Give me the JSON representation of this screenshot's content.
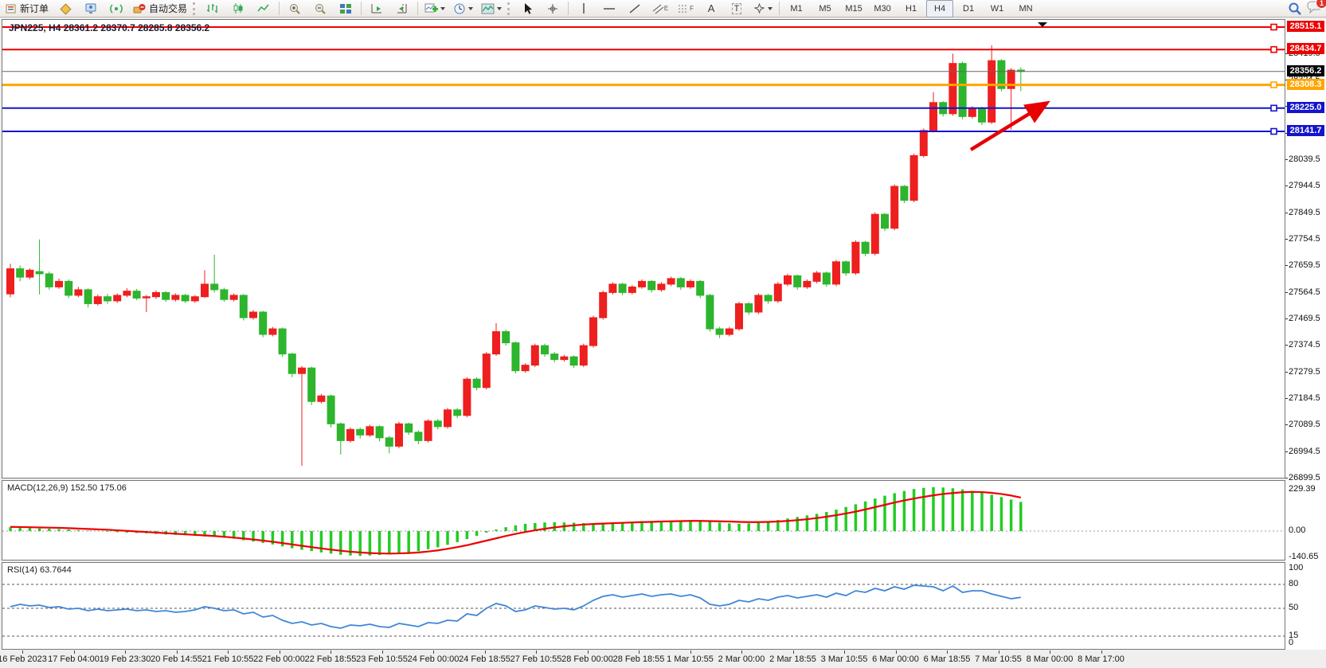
{
  "toolbar": {
    "new_order_label": "新订单",
    "auto_trading_label": "自动交易",
    "tools": {
      "channel_sub": "E",
      "fibo_sub": "F",
      "text_label": "A",
      "textbox_label": "T"
    },
    "timeframes": [
      "M1",
      "M5",
      "M15",
      "M30",
      "H1",
      "H4",
      "D1",
      "W1",
      "MN"
    ],
    "active_timeframe": "H4",
    "notification_badge": "1"
  },
  "chart": {
    "title": "JPN225, H4  28361.2 28370.7 28285.8 28356.2",
    "symbol": "JPN225",
    "timeframe": "H4",
    "ohlc": {
      "open": "28361.2",
      "high": "28370.7",
      "low": "28285.8",
      "close": "28356.2"
    }
  },
  "levels": [
    {
      "price": 28515.1,
      "label": "28515.1",
      "color": "#ee0000",
      "width": 2,
      "handle": true
    },
    {
      "price": 28434.7,
      "label": "28434.7",
      "color": "#ee0000",
      "width": 2,
      "handle": true
    },
    {
      "price": 28356.2,
      "label": "28356.2",
      "color": "#000000",
      "line_color": "#666666",
      "width": 1,
      "handle": false
    },
    {
      "price": 28308.3,
      "label": "28308.3",
      "color": "#ffa500",
      "width": 3,
      "handle": true
    },
    {
      "price": 28225.0,
      "label": "28225.0",
      "color": "#1414cc",
      "width": 2,
      "handle": true
    },
    {
      "price": 28141.7,
      "label": "28141.7",
      "color": "#1414cc",
      "width": 2,
      "handle": true
    }
  ],
  "price_axis": {
    "ticks": [
      "28419.5",
      "28324.5",
      "28229.5",
      "28134.5",
      "28039.5",
      "27944.5",
      "27849.5",
      "27754.5",
      "27659.5",
      "27564.5",
      "27469.5",
      "27374.5",
      "27279.5",
      "27184.5",
      "27089.5",
      "26994.5",
      "26899.5"
    ]
  },
  "macd_pane": {
    "label": "MACD(12,26,9) 152.50 175.06",
    "axis_max": "229.39",
    "axis_zero": "0.00",
    "axis_min": "-140.65"
  },
  "rsi_pane": {
    "label": "RSI(14) 63.7644",
    "axis_labels": [
      "100",
      "80",
      "50",
      "15",
      "0"
    ],
    "level_lines": [
      80,
      50,
      15
    ]
  },
  "time_axis": {
    "labels": [
      "16 Feb 2023",
      "17 Feb 04:00",
      "19 Feb 23:30",
      "20 Feb 14:55",
      "21 Feb 10:55",
      "22 Feb 00:00",
      "22 Feb 18:55",
      "23 Feb 10:55",
      "24 Feb 00:00",
      "24 Feb 18:55",
      "27 Feb 10:55",
      "28 Feb 00:00",
      "28 Feb 18:55",
      "1 Mar 10:55",
      "2 Mar 00:00",
      "2 Mar 18:55",
      "3 Mar 10:55",
      "6 Mar 00:00",
      "6 Mar 18:55",
      "7 Mar 10:55",
      "8 Mar 00:00",
      "8 Mar 17:00"
    ]
  },
  "annotations": {
    "arrow_color": "#e60000",
    "marker_color": "#111111"
  },
  "chart_data": {
    "type": "candlestick",
    "symbol": "JPN225",
    "timeframe": "H4",
    "bull_color": "#ee1f1f",
    "bear_color": "#2db52d",
    "price_range": {
      "top": 28540.8,
      "bottom": 26896.1
    },
    "candles": [
      [
        27560,
        27668,
        27548,
        27650
      ],
      [
        27650,
        27662,
        27605,
        27620
      ],
      [
        27620,
        27652,
        27612,
        27645
      ],
      [
        27640,
        27755,
        27558,
        27632
      ],
      [
        27632,
        27640,
        27575,
        27585
      ],
      [
        27585,
        27615,
        27578,
        27605
      ],
      [
        27605,
        27612,
        27545,
        27555
      ],
      [
        27555,
        27585,
        27548,
        27575
      ],
      [
        27575,
        27580,
        27512,
        27525
      ],
      [
        27525,
        27558,
        27518,
        27550
      ],
      [
        27550,
        27560,
        27525,
        27535
      ],
      [
        27535,
        27562,
        27528,
        27555
      ],
      [
        27555,
        27580,
        27548,
        27570
      ],
      [
        27570,
        27578,
        27538,
        27545
      ],
      [
        27548,
        27556,
        27495,
        27550
      ],
      [
        27550,
        27572,
        27542,
        27565
      ],
      [
        27565,
        27570,
        27532,
        27540
      ],
      [
        27540,
        27562,
        27533,
        27555
      ],
      [
        27555,
        27560,
        27528,
        27535
      ],
      [
        27535,
        27556,
        27528,
        27550
      ],
      [
        27550,
        27645,
        27545,
        27595
      ],
      [
        27595,
        27700,
        27565,
        27575
      ],
      [
        27575,
        27582,
        27532,
        27540
      ],
      [
        27540,
        27562,
        27533,
        27555
      ],
      [
        27555,
        27560,
        27465,
        27475
      ],
      [
        27475,
        27502,
        27468,
        27495
      ],
      [
        27495,
        27500,
        27405,
        27415
      ],
      [
        27415,
        27442,
        27408,
        27435
      ],
      [
        27435,
        27440,
        27335,
        27345
      ],
      [
        27345,
        27350,
        27262,
        27275
      ],
      [
        27275,
        27302,
        26945,
        27295
      ],
      [
        27295,
        27300,
        27162,
        27175
      ],
      [
        27175,
        27202,
        27168,
        27195
      ],
      [
        27195,
        27200,
        27082,
        27095
      ],
      [
        27095,
        27100,
        26985,
        27035
      ],
      [
        27035,
        27082,
        27028,
        27075
      ],
      [
        27075,
        27082,
        27042,
        27055
      ],
      [
        27055,
        27092,
        27048,
        27085
      ],
      [
        27085,
        27090,
        27032,
        27045
      ],
      [
        27045,
        27052,
        26990,
        27015
      ],
      [
        27015,
        27102,
        27008,
        27095
      ],
      [
        27095,
        27100,
        27055,
        27065
      ],
      [
        27065,
        27072,
        27022,
        27035
      ],
      [
        27035,
        27112,
        27028,
        27105
      ],
      [
        27105,
        27112,
        27075,
        27085
      ],
      [
        27085,
        27152,
        27078,
        27145
      ],
      [
        27145,
        27152,
        27115,
        27125
      ],
      [
        27125,
        27262,
        27118,
        27255
      ],
      [
        27255,
        27262,
        27215,
        27225
      ],
      [
        27225,
        27352,
        27218,
        27345
      ],
      [
        27345,
        27455,
        27338,
        27425
      ],
      [
        27425,
        27432,
        27375,
        27385
      ],
      [
        27385,
        27390,
        27275,
        27285
      ],
      [
        27285,
        27312,
        27278,
        27305
      ],
      [
        27305,
        27382,
        27298,
        27375
      ],
      [
        27375,
        27382,
        27335,
        27345
      ],
      [
        27345,
        27352,
        27315,
        27325
      ],
      [
        27325,
        27342,
        27318,
        27335
      ],
      [
        27335,
        27340,
        27295,
        27305
      ],
      [
        27305,
        27382,
        27298,
        27375
      ],
      [
        27375,
        27482,
        27368,
        27475
      ],
      [
        27475,
        27572,
        27468,
        27565
      ],
      [
        27565,
        27602,
        27558,
        27595
      ],
      [
        27595,
        27600,
        27555,
        27565
      ],
      [
        27565,
        27592,
        27558,
        27585
      ],
      [
        27585,
        27612,
        27578,
        27605
      ],
      [
        27605,
        27610,
        27565,
        27575
      ],
      [
        27575,
        27602,
        27568,
        27595
      ],
      [
        27595,
        27622,
        27588,
        27615
      ],
      [
        27615,
        27620,
        27575,
        27585
      ],
      [
        27585,
        27612,
        27578,
        27605
      ],
      [
        27605,
        27610,
        27545,
        27555
      ],
      [
        27555,
        27560,
        27425,
        27435
      ],
      [
        27435,
        27442,
        27402,
        27415
      ],
      [
        27415,
        27442,
        27408,
        27435
      ],
      [
        27435,
        27532,
        27428,
        27525
      ],
      [
        27525,
        27530,
        27485,
        27495
      ],
      [
        27495,
        27562,
        27488,
        27555
      ],
      [
        27555,
        27560,
        27525,
        27535
      ],
      [
        27535,
        27602,
        27528,
        27595
      ],
      [
        27595,
        27632,
        27588,
        27625
      ],
      [
        27625,
        27630,
        27575,
        27585
      ],
      [
        27585,
        27612,
        27578,
        27605
      ],
      [
        27605,
        27642,
        27598,
        27635
      ],
      [
        27635,
        27640,
        27585,
        27595
      ],
      [
        27595,
        27682,
        27588,
        27675
      ],
      [
        27675,
        27680,
        27625,
        27635
      ],
      [
        27635,
        27752,
        27628,
        27745
      ],
      [
        27745,
        27750,
        27695,
        27705
      ],
      [
        27705,
        27852,
        27698,
        27845
      ],
      [
        27845,
        27850,
        27785,
        27795
      ],
      [
        27795,
        27952,
        27788,
        27945
      ],
      [
        27945,
        27950,
        27885,
        27895
      ],
      [
        27895,
        28062,
        27888,
        28055
      ],
      [
        28055,
        28152,
        28048,
        28145
      ],
      [
        28145,
        28282,
        28138,
        28245
      ],
      [
        28245,
        28250,
        28195,
        28205
      ],
      [
        28205,
        28420,
        28198,
        28385
      ],
      [
        28385,
        28392,
        28185,
        28195
      ],
      [
        28195,
        28232,
        28188,
        28225
      ],
      [
        28225,
        28230,
        28165,
        28175
      ],
      [
        28175,
        28450,
        28168,
        28395
      ],
      [
        28395,
        28400,
        28285,
        28295
      ],
      [
        28295,
        28368,
        28148,
        28361
      ],
      [
        28361.2,
        28370.7,
        28285.8,
        28356.2
      ]
    ],
    "indicators": [
      {
        "name": "MACD",
        "params": "12,26,9",
        "current_main": 152.5,
        "current_signal": 175.06,
        "histogram_color": "#22cc22",
        "signal_color": "#ee0000",
        "histogram": [
          20,
          18,
          16,
          14,
          12,
          10,
          8,
          5,
          2,
          0,
          -3,
          -6,
          -8,
          -10,
          -12,
          -15,
          -18,
          -20,
          -22,
          -25,
          -28,
          -30,
          -35,
          -40,
          -48,
          -55,
          -62,
          -70,
          -80,
          -90,
          -98,
          -105,
          -112,
          -118,
          -124,
          -128,
          -130,
          -128,
          -125,
          -122,
          -118,
          -112,
          -105,
          -95,
          -85,
          -72,
          -58,
          -42,
          -25,
          -8,
          8,
          20,
          30,
          38,
          42,
          45,
          46,
          45,
          44,
          42,
          42,
          44,
          46,
          48,
          50,
          52,
          53,
          54,
          54,
          55,
          54,
          52,
          48,
          44,
          40,
          38,
          40,
          44,
          50,
          58,
          66,
          74,
          82,
          90,
          100,
          112,
          126,
          140,
          155,
          170,
          185,
          198,
          210,
          220,
          226,
          229.39,
          228,
          224,
          218,
          210,
          200,
          190,
          178,
          165,
          152.5
        ],
        "signal": [
          22,
          21,
          20,
          19,
          18,
          17,
          15,
          13,
          11,
          9,
          7,
          4,
          1,
          -2,
          -5,
          -8,
          -11,
          -14,
          -17,
          -20,
          -23,
          -26,
          -30,
          -34,
          -39,
          -44,
          -50,
          -56,
          -63,
          -70,
          -77,
          -84,
          -91,
          -97,
          -103,
          -108,
          -112,
          -115,
          -117,
          -118,
          -117,
          -115,
          -112,
          -107,
          -101,
          -93,
          -84,
          -74,
          -62,
          -50,
          -38,
          -26,
          -15,
          -5,
          4,
          12,
          19,
          25,
          30,
          34,
          37,
          39,
          41,
          43,
          45,
          47,
          48,
          50,
          51,
          52,
          53,
          53,
          52,
          51,
          50,
          48,
          47,
          47,
          48,
          50,
          53,
          57,
          62,
          68,
          75,
          83,
          92,
          102,
          113,
          125,
          137,
          149,
          160,
          170,
          179,
          187,
          194,
          199,
          203,
          205,
          204,
          200,
          194,
          186,
          175.06
        ]
      },
      {
        "name": "RSI",
        "params": "14",
        "current": 63.7644,
        "line_color": "#3f86d6",
        "values": [
          52,
          55,
          53,
          54,
          51,
          52,
          49,
          50,
          47,
          49,
          47,
          48,
          49,
          47,
          48,
          46,
          47,
          45,
          46,
          48,
          52,
          50,
          47,
          48,
          43,
          45,
          39,
          41,
          35,
          31,
          33,
          29,
          31,
          27,
          25,
          29,
          28,
          30,
          27,
          26,
          31,
          29,
          27,
          32,
          31,
          35,
          34,
          43,
          41,
          50,
          56,
          53,
          46,
          48,
          53,
          51,
          49,
          50,
          48,
          53,
          60,
          65,
          67,
          64,
          66,
          68,
          65,
          67,
          68,
          65,
          67,
          63,
          55,
          53,
          55,
          60,
          58,
          62,
          60,
          64,
          66,
          63,
          65,
          67,
          64,
          69,
          66,
          72,
          70,
          75,
          72,
          77,
          74,
          79,
          78,
          77,
          72,
          78,
          70,
          72,
          72,
          68,
          65,
          62,
          63.76
        ]
      }
    ]
  }
}
